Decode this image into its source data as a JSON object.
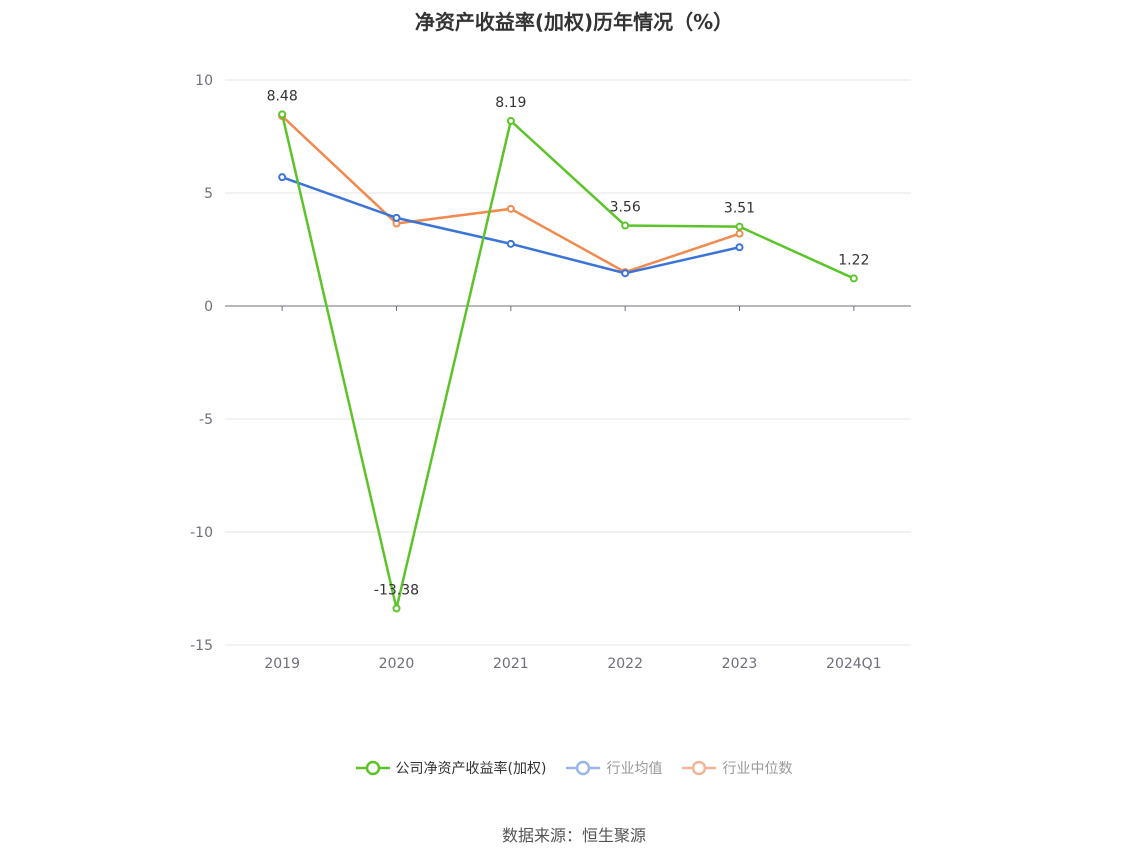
{
  "title": "净资产收益率(加权)历年情况（%）",
  "source": "数据来源：恒生聚源",
  "chart_data": {
    "type": "line",
    "title": "净资产收益率(加权)历年情况（%）",
    "categories": [
      "2019",
      "2020",
      "2021",
      "2022",
      "2023",
      "2024Q1"
    ],
    "ylim": [
      -15,
      10
    ],
    "yticks": [
      10,
      5,
      0,
      -5,
      -10,
      -15
    ],
    "grid": true,
    "legend_position": "bottom",
    "series": [
      {
        "name": "公司净资产收益率(加权)",
        "color": "#5cc42a",
        "values": [
          8.48,
          -13.38,
          8.19,
          3.56,
          3.51,
          1.22
        ],
        "labels": [
          "8.48",
          "-13.38",
          "8.19",
          "3.56",
          "3.51",
          "1.22"
        ]
      },
      {
        "name": "行业均值",
        "color": "#3b73d9",
        "values": [
          5.7,
          3.9,
          2.75,
          1.45,
          2.6,
          null
        ]
      },
      {
        "name": "行业中位数",
        "color": "#f08a50",
        "values": [
          8.4,
          3.65,
          4.3,
          1.5,
          3.2,
          null
        ]
      }
    ]
  },
  "legend": [
    {
      "label": "公司净资产收益率(加权)",
      "color": "#5cc42a",
      "active": true
    },
    {
      "label": "行业均值",
      "color": "#9ab6ec",
      "active": false
    },
    {
      "label": "行业中位数",
      "color": "#f5b497",
      "active": false
    }
  ]
}
